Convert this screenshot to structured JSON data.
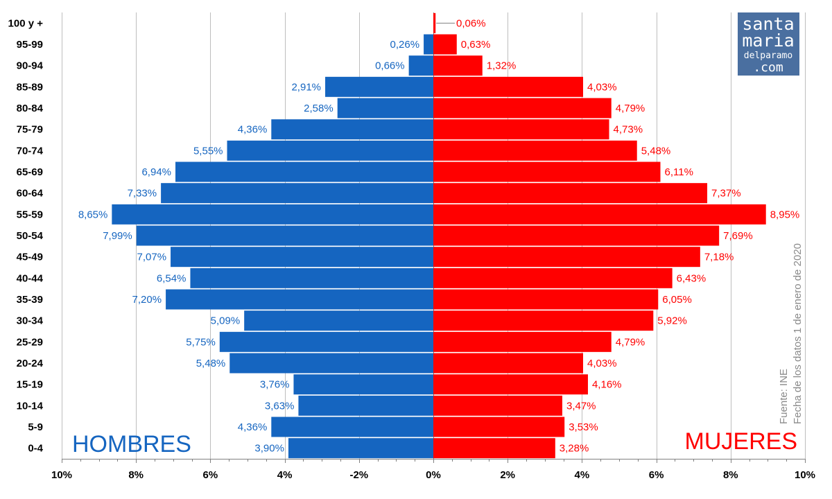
{
  "chart_data": {
    "type": "bar",
    "orientation": "horizontal",
    "subtype": "population-pyramid",
    "categories": [
      "100 y +",
      "95-99",
      "90-94",
      "85-89",
      "80-84",
      "75-79",
      "70-74",
      "65-69",
      "60-64",
      "55-59",
      "50-54",
      "45-49",
      "40-44",
      "35-39",
      "30-34",
      "25-29",
      "20-24",
      "15-19",
      "10-14",
      "5-9",
      "0-4"
    ],
    "series": [
      {
        "name": "HOMBRES",
        "color": "#1565c0",
        "side": "left",
        "values": [
          0,
          0.26,
          0.66,
          2.91,
          2.58,
          4.36,
          5.55,
          6.94,
          7.33,
          8.65,
          7.99,
          7.07,
          6.54,
          7.2,
          5.09,
          5.75,
          5.48,
          3.76,
          3.63,
          4.36,
          3.9
        ],
        "labels": [
          "",
          "0,26%",
          "0,66%",
          "2,91%",
          "2,58%",
          "4,36%",
          "5,55%",
          "6,94%",
          "7,33%",
          "8,65%",
          "7,99%",
          "7,07%",
          "6,54%",
          "7,20%",
          "5,09%",
          "5,75%",
          "5,48%",
          "3,76%",
          "3,63%",
          "4,36%",
          "3,90%"
        ]
      },
      {
        "name": "MUJERES",
        "color": "#ff0000",
        "side": "right",
        "values": [
          0.06,
          0.63,
          1.32,
          4.03,
          4.79,
          4.73,
          5.48,
          6.11,
          7.37,
          8.95,
          7.69,
          7.18,
          6.43,
          6.05,
          5.92,
          4.79,
          4.03,
          4.16,
          3.47,
          3.53,
          3.28
        ],
        "labels": [
          "0,06%",
          "0,63%",
          "1,32%",
          "4,03%",
          "4,79%",
          "4,73%",
          "5,48%",
          "6,11%",
          "7,37%",
          "8,95%",
          "7,69%",
          "7,18%",
          "6,43%",
          "6,05%",
          "5,92%",
          "4,79%",
          "4,03%",
          "4,16%",
          "3,47%",
          "3,53%",
          "3,28%"
        ]
      }
    ],
    "xlim": [
      -10,
      10
    ],
    "xticks": [
      -10,
      -8,
      -6,
      -4,
      -2,
      0,
      2,
      4,
      6,
      8,
      10
    ],
    "tick_labels": [
      "10%",
      "8%",
      "6%",
      "4%",
      "-2%",
      "0%",
      "2%",
      "4%",
      "6%",
      "8%",
      "10%"
    ],
    "grid": "vertical",
    "left_label": "HOMBRES",
    "right_label": "MUJERES",
    "source": [
      "Fuente: INE",
      "Fecha de los datos 1 de enero de 2020"
    ],
    "logo": {
      "lines": [
        "santa",
        "maria",
        "delparamo",
        ".com"
      ],
      "bg": "#4a6fa0"
    }
  }
}
